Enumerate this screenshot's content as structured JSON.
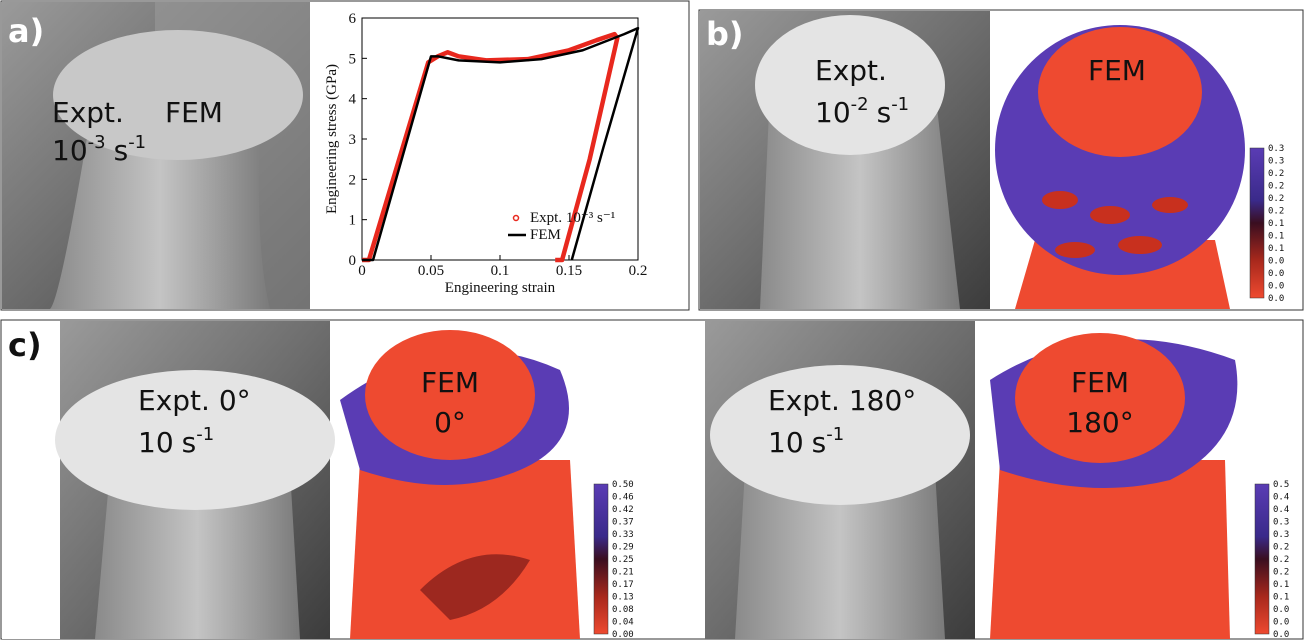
{
  "panels": {
    "a": {
      "label": "a)",
      "expt": "Expt.",
      "rate": {
        "base": "10",
        "exp": "-3",
        "unit": "s",
        "unit_exp": "-1"
      },
      "fem": "FEM"
    },
    "b": {
      "label": "b)",
      "expt": "Expt.",
      "rate": {
        "base": "10",
        "exp": "-2",
        "unit": "s",
        "unit_exp": "-1"
      },
      "fem": "FEM",
      "colorbar": [
        "0.3",
        "0.3",
        "0.2",
        "0.2",
        "0.2",
        "0.2",
        "0.1",
        "0.1",
        "0.1",
        "0.0",
        "0.0",
        "0.0",
        "0.0"
      ]
    },
    "c": {
      "label": "c)",
      "left": {
        "expt": "Expt. 0°",
        "rate": {
          "base": "10",
          "unit": "s",
          "unit_exp": "-1"
        },
        "fem": "FEM",
        "fem_angle": "0°",
        "colorbar": [
          "0.50",
          "0.46",
          "0.42",
          "0.37",
          "0.33",
          "0.29",
          "0.25",
          "0.21",
          "0.17",
          "0.13",
          "0.08",
          "0.04",
          "0.00"
        ]
      },
      "right": {
        "expt": "Expt. 180°",
        "rate": {
          "base": "10",
          "unit": "s",
          "unit_exp": "-1"
        },
        "fem": "FEM",
        "fem_angle": "180°",
        "colorbar": [
          "0.5",
          "0.4",
          "0.4",
          "0.3",
          "0.3",
          "0.2",
          "0.2",
          "0.2",
          "0.1",
          "0.1",
          "0.0",
          "0.0",
          "0.0"
        ]
      }
    }
  },
  "chart_data": {
    "type": "line",
    "x_label": "Engineering strain",
    "y_label": "Engineering stress (GPa)",
    "xlim": [
      0,
      0.2
    ],
    "ylim": [
      0,
      6
    ],
    "xticks": [
      0,
      0.05,
      0.1,
      0.15,
      0.2
    ],
    "yticks": [
      0,
      1,
      2,
      3,
      4,
      5,
      6
    ],
    "legend": "lower-right",
    "series": [
      {
        "name": "Expt. 10⁻³ s⁻¹",
        "color": "#e8281e",
        "x": [
          0,
          0.005,
          0.048,
          0.055,
          0.062,
          0.07,
          0.09,
          0.12,
          0.15,
          0.17,
          0.183,
          0.185,
          0.165,
          0.145,
          0.14
        ],
        "values": [
          0,
          0,
          4.9,
          5.05,
          5.15,
          5.05,
          4.95,
          4.98,
          5.2,
          5.45,
          5.6,
          5.5,
          2.5,
          0,
          0
        ]
      },
      {
        "name": "FEM",
        "color": "#000000",
        "x": [
          0,
          0.008,
          0.05,
          0.055,
          0.07,
          0.1,
          0.13,
          0.16,
          0.19,
          0.2,
          0.175,
          0.152
        ],
        "values": [
          0,
          0,
          5.05,
          5.05,
          4.95,
          4.9,
          4.98,
          5.2,
          5.6,
          5.75,
          2.8,
          0
        ]
      }
    ]
  }
}
